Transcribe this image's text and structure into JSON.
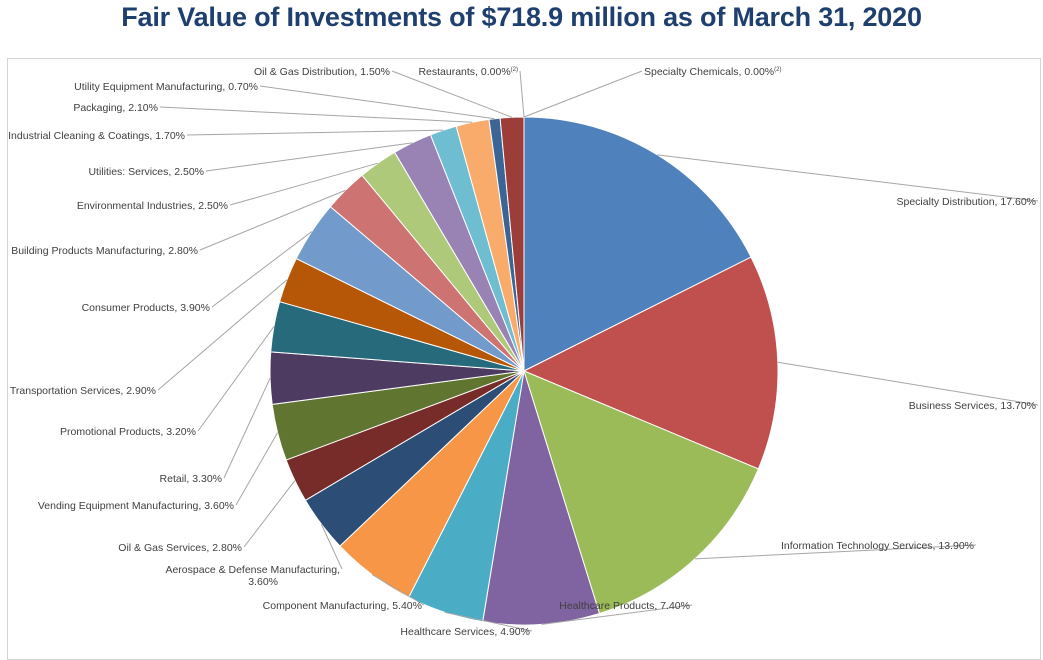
{
  "title": "Fair Value of Investments of $718.9 million as of March 31, 2020",
  "chart_data": {
    "type": "pie",
    "title": "Fair Value of Investments of $718.9 million as of March 31, 2020",
    "unit": "%",
    "start": "12 o'clock",
    "direction": "clockwise",
    "legend": "none (data labels with leader lines)",
    "slices": [
      {
        "label": "Specialty Distribution",
        "value_label": "17.60%",
        "value": 17.6,
        "color": "#4f81bd"
      },
      {
        "label": "Business Services",
        "value_label": "13.70%",
        "value": 13.7,
        "color": "#c0504d"
      },
      {
        "label": "Information Technology Services",
        "value_label": "13.90%",
        "value": 13.9,
        "color": "#9bbb59"
      },
      {
        "label": "Healthcare Products",
        "value_label": "7.40%",
        "value": 7.4,
        "color": "#8064a2"
      },
      {
        "label": "Healthcare Services",
        "value_label": "4.90%",
        "value": 4.9,
        "color": "#4bacc6"
      },
      {
        "label": "Component Manufacturing",
        "value_label": "5.40%",
        "value": 5.4,
        "color": "#f79646"
      },
      {
        "label": "Aerospace & Defense Manufacturing,",
        "label2": "3.60%",
        "value_label": "",
        "value": 3.6,
        "color": "#2c4d75"
      },
      {
        "label": "Oil & Gas Services",
        "value_label": "2.80%",
        "value": 2.8,
        "color": "#772c2a"
      },
      {
        "label": "Vending Equipment Manufacturing",
        "value_label": "3.60%",
        "value": 3.6,
        "color": "#5f7530"
      },
      {
        "label": "Retail",
        "value_label": "3.30%",
        "value": 3.3,
        "color": "#4d3b62"
      },
      {
        "label": "Promotional Products",
        "value_label": "3.20%",
        "value": 3.2,
        "color": "#276a7c"
      },
      {
        "label": "Transportation Services",
        "value_label": "2.90%",
        "value": 2.9,
        "color": "#b65708"
      },
      {
        "label": "Consumer Products",
        "value_label": "3.90%",
        "value": 3.9,
        "color": "#729aca"
      },
      {
        "label": "Building Products Manufacturing",
        "value_label": "2.80%",
        "value": 2.8,
        "color": "#cd7371"
      },
      {
        "label": "Environmental Industries",
        "value_label": "2.50%",
        "value": 2.5,
        "color": "#afc97a"
      },
      {
        "label": "Utilities: Services",
        "value_label": "2.50%",
        "value": 2.5,
        "color": "#9983b5"
      },
      {
        "label": "Industrial Cleaning & Coatings",
        "value_label": "1.70%",
        "value": 1.7,
        "color": "#6fbdd1"
      },
      {
        "label": "Packaging",
        "value_label": "2.10%",
        "value": 2.1,
        "color": "#f9ab6b"
      },
      {
        "label": "Utility Equipment Manufacturing",
        "value_label": "0.70%",
        "value": 0.7,
        "color": "#3a6595"
      },
      {
        "label": "Oil & Gas Distribution",
        "value_label": "1.50%",
        "value": 1.5,
        "color": "#9d3d3a"
      },
      {
        "label": "Restaurants",
        "value_label": "0.00%",
        "footnote": "(2)",
        "value": 0.0,
        "color": "#7f7f7f"
      },
      {
        "label": "Specialty Chemicals",
        "value_label": "0.00%",
        "footnote": "(2)",
        "value": 0.0,
        "color": "#7f7f7f"
      }
    ]
  }
}
